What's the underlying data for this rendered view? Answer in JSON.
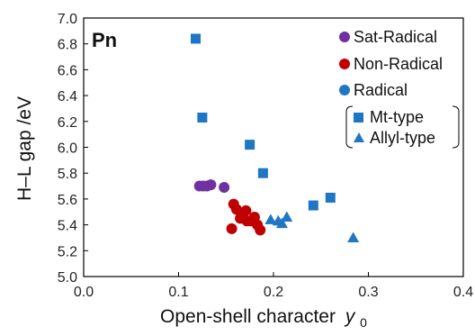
{
  "chart_data": {
    "type": "scatter",
    "panel_label": "Pn",
    "xlabel": "Open-shell character",
    "xlabel_symbol": "y",
    "xlabel_subscript": "0",
    "ylabel": "H–L gap /eV",
    "xlim": [
      0.0,
      0.4
    ],
    "ylim": [
      5.0,
      7.0
    ],
    "x_ticks": [
      "0.0",
      "0.1",
      "0.2",
      "0.3",
      "0.4"
    ],
    "y_ticks": [
      "5.0",
      "5.2",
      "5.4",
      "5.6",
      "5.8",
      "6.0",
      "6.2",
      "6.4",
      "6.6",
      "6.8",
      "7.0"
    ],
    "grid": false,
    "legend_position": "top-right",
    "legend": {
      "categories": [
        {
          "label": "Sat-Radical",
          "color": "#7030a0"
        },
        {
          "label": "Non-Radical",
          "color": "#c00000"
        },
        {
          "label": "Radical",
          "color": "#1f77c4"
        }
      ],
      "shapes": [
        {
          "label": "Mt-type",
          "marker": "square"
        },
        {
          "label": "Allyl-type",
          "marker": "triangle"
        }
      ]
    },
    "series": [
      {
        "name": "Sat-Radical",
        "marker": "circle",
        "color": "#7030a0",
        "points": [
          {
            "x": 0.122,
            "y": 5.7
          },
          {
            "x": 0.126,
            "y": 5.7
          },
          {
            "x": 0.13,
            "y": 5.7
          },
          {
            "x": 0.134,
            "y": 5.71
          },
          {
            "x": 0.148,
            "y": 5.69
          }
        ]
      },
      {
        "name": "Non-Radical",
        "marker": "circle",
        "color": "#c00000",
        "points": [
          {
            "x": 0.158,
            "y": 5.56
          },
          {
            "x": 0.161,
            "y": 5.52
          },
          {
            "x": 0.165,
            "y": 5.45
          },
          {
            "x": 0.167,
            "y": 5.46
          },
          {
            "x": 0.171,
            "y": 5.51
          },
          {
            "x": 0.172,
            "y": 5.43
          },
          {
            "x": 0.176,
            "y": 5.43
          },
          {
            "x": 0.18,
            "y": 5.46
          },
          {
            "x": 0.183,
            "y": 5.4
          },
          {
            "x": 0.186,
            "y": 5.36
          },
          {
            "x": 0.156,
            "y": 5.37
          }
        ]
      },
      {
        "name": "Mt-type",
        "marker": "square",
        "color": "#1f77c4",
        "points": [
          {
            "x": 0.118,
            "y": 6.84
          },
          {
            "x": 0.125,
            "y": 6.23
          },
          {
            "x": 0.175,
            "y": 6.02
          },
          {
            "x": 0.189,
            "y": 5.8
          },
          {
            "x": 0.242,
            "y": 5.55
          },
          {
            "x": 0.26,
            "y": 5.61
          }
        ]
      },
      {
        "name": "Allyl-type",
        "marker": "triangle",
        "color": "#1f77c4",
        "points": [
          {
            "x": 0.197,
            "y": 5.44
          },
          {
            "x": 0.205,
            "y": 5.43
          },
          {
            "x": 0.209,
            "y": 5.41
          },
          {
            "x": 0.214,
            "y": 5.46
          },
          {
            "x": 0.284,
            "y": 5.3
          }
        ]
      }
    ]
  }
}
